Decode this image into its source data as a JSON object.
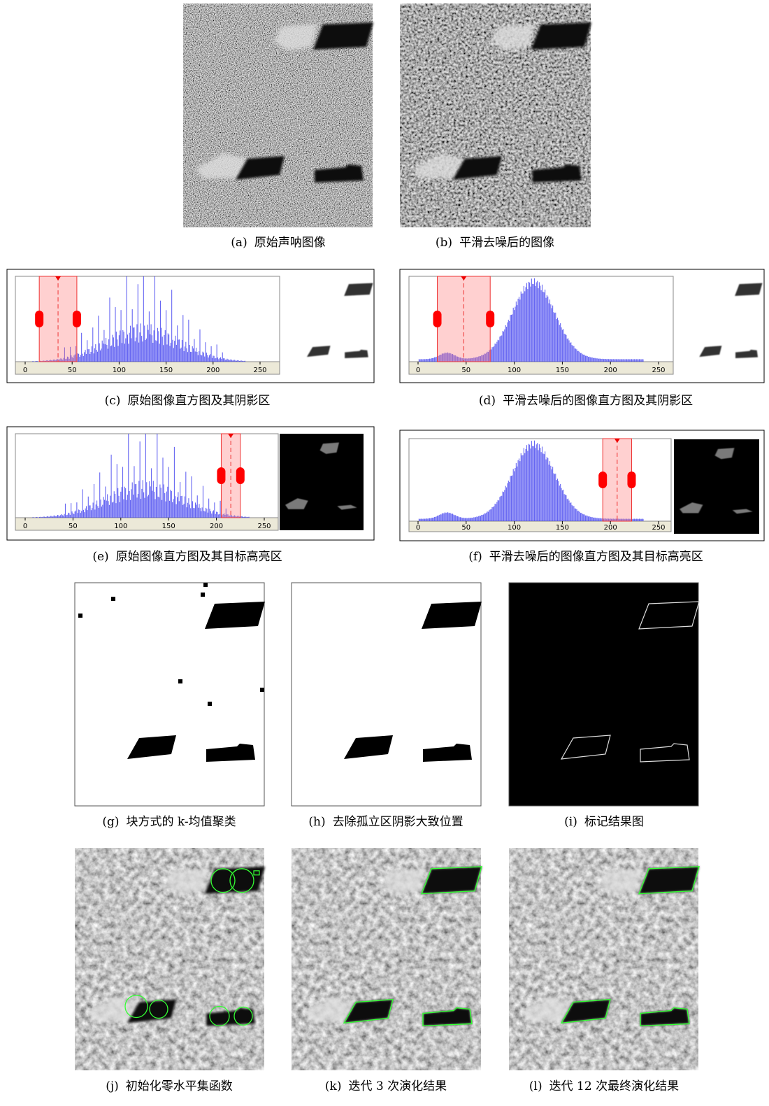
{
  "subfigures": [
    {
      "label": "(a)",
      "caption": "原始声呐图像"
    },
    {
      "label": "(b)",
      "caption": "平滑去噪后的图像"
    },
    {
      "label": "(c)",
      "caption": "原始图像直方图及其阴影区"
    },
    {
      "label": "(d)",
      "caption": "平滑去噪后的图像直方图及其阴影区"
    },
    {
      "label": "(e)",
      "caption": "原始图像直方图及其目标高亮区"
    },
    {
      "label": "(f)",
      "caption": "平滑去噪后的图像直方图及其目标高亮区"
    },
    {
      "label": "(g)",
      "caption": "块方式的 k-均值聚类"
    },
    {
      "label": "(h)",
      "caption": "去除孤立区阴影大致位置"
    },
    {
      "label": "(i)",
      "caption": "标记结果图"
    },
    {
      "label": "(j)",
      "caption": "初始化零水平集函数"
    },
    {
      "label": "(k)",
      "caption": "迭代 3 次演化结果"
    },
    {
      "label": "(l)",
      "caption": "迭代 12 次最终演化结果"
    }
  ],
  "histogram_ticks": [
    0,
    50,
    100,
    150,
    200,
    250
  ]
}
